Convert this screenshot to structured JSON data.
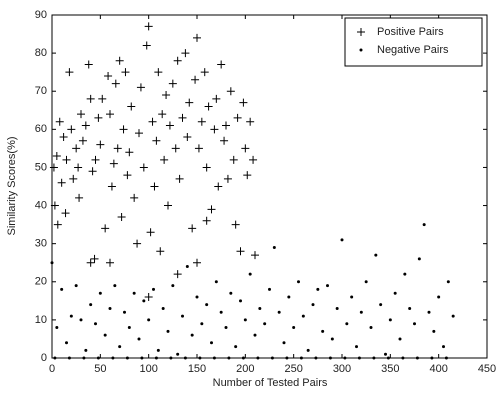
{
  "chart_data": {
    "type": "scatter",
    "xlabel": "Number of Tested Pairs",
    "ylabel": "Similarity Scores(%)",
    "xlim": [
      0,
      450
    ],
    "ylim": [
      0,
      90
    ],
    "xticks": [
      0,
      50,
      100,
      150,
      200,
      250,
      300,
      350,
      400,
      450
    ],
    "yticks": [
      0,
      10,
      20,
      30,
      40,
      50,
      60,
      70,
      80,
      90
    ],
    "legend": "upper right",
    "series": [
      {
        "name": "Positive Pairs",
        "color": "#000000",
        "marker": "+",
        "x": [
          2,
          3,
          5,
          6,
          8,
          10,
          12,
          14,
          15,
          18,
          20,
          22,
          25,
          27,
          28,
          30,
          32,
          35,
          38,
          40,
          42,
          44,
          45,
          48,
          50,
          52,
          55,
          58,
          60,
          62,
          64,
          66,
          68,
          70,
          72,
          74,
          76,
          78,
          80,
          82,
          85,
          88,
          90,
          92,
          95,
          98,
          100,
          102,
          104,
          106,
          108,
          110,
          112,
          114,
          116,
          118,
          120,
          122,
          125,
          128,
          130,
          132,
          135,
          138,
          140,
          142,
          145,
          148,
          150,
          152,
          155,
          158,
          160,
          162,
          165,
          168,
          170,
          172,
          175,
          178,
          180,
          182,
          185,
          188,
          190,
          192,
          195,
          198,
          200,
          202,
          205,
          208,
          210,
          160,
          60,
          40,
          150,
          100,
          130
        ],
        "values": [
          50,
          40,
          53,
          35,
          62,
          46,
          58,
          38,
          52,
          75,
          60,
          47,
          55,
          50,
          42,
          64,
          57,
          61,
          77,
          68,
          49,
          26,
          52,
          63,
          56,
          68,
          34,
          74,
          64,
          45,
          51,
          72,
          55,
          78,
          37,
          60,
          75,
          48,
          54,
          66,
          42,
          30,
          59,
          71,
          50,
          82,
          87,
          33,
          62,
          45,
          57,
          75,
          28,
          64,
          52,
          69,
          40,
          61,
          72,
          55,
          78,
          47,
          63,
          80,
          58,
          67,
          34,
          73,
          84,
          55,
          62,
          75,
          50,
          66,
          39,
          60,
          68,
          45,
          77,
          57,
          61,
          47,
          70,
          52,
          35,
          63,
          28,
          67,
          55,
          48,
          62,
          52,
          27,
          36,
          25,
          25,
          25,
          16,
          22
        ]
      },
      {
        "name": "Negative Pairs",
        "color": "#000000",
        "marker": ".",
        "x": [
          0,
          5,
          10,
          15,
          20,
          25,
          30,
          35,
          40,
          45,
          50,
          55,
          60,
          65,
          70,
          75,
          80,
          85,
          90,
          95,
          100,
          105,
          110,
          115,
          120,
          125,
          130,
          135,
          140,
          145,
          150,
          155,
          160,
          165,
          170,
          175,
          180,
          185,
          190,
          195,
          200,
          205,
          210,
          215,
          220,
          225,
          230,
          235,
          240,
          245,
          250,
          255,
          260,
          265,
          270,
          275,
          280,
          285,
          290,
          295,
          300,
          305,
          310,
          315,
          320,
          325,
          330,
          335,
          340,
          345,
          350,
          355,
          360,
          365,
          370,
          375,
          380,
          385,
          390,
          395,
          400,
          405,
          410,
          415,
          3,
          18,
          33,
          48,
          63,
          78,
          93,
          108,
          123,
          138,
          153,
          168,
          183,
          198,
          213,
          228,
          243,
          258,
          273,
          288,
          303,
          318,
          333,
          348,
          363,
          378,
          393,
          408
        ],
        "values": [
          25,
          8,
          18,
          4,
          11,
          19,
          10,
          2,
          14,
          9,
          17,
          6,
          13,
          19,
          3,
          12,
          8,
          17,
          5,
          15,
          10,
          18,
          2,
          13,
          7,
          19,
          1,
          11,
          24,
          6,
          16,
          9,
          14,
          4,
          20,
          12,
          8,
          17,
          3,
          15,
          10,
          22,
          6,
          13,
          9,
          18,
          29,
          12,
          4,
          16,
          8,
          20,
          11,
          2,
          14,
          18,
          7,
          19,
          5,
          13,
          31,
          9,
          16,
          3,
          12,
          20,
          8,
          27,
          14,
          1,
          10,
          17,
          5,
          22,
          13,
          9,
          26,
          35,
          12,
          7,
          16,
          3,
          20,
          11,
          0,
          0,
          0,
          0,
          0,
          0,
          0,
          0,
          0,
          0,
          0,
          0,
          0,
          0,
          0,
          0,
          0,
          0,
          0,
          0,
          0,
          0,
          0,
          0,
          0,
          0,
          0,
          0
        ]
      }
    ]
  }
}
